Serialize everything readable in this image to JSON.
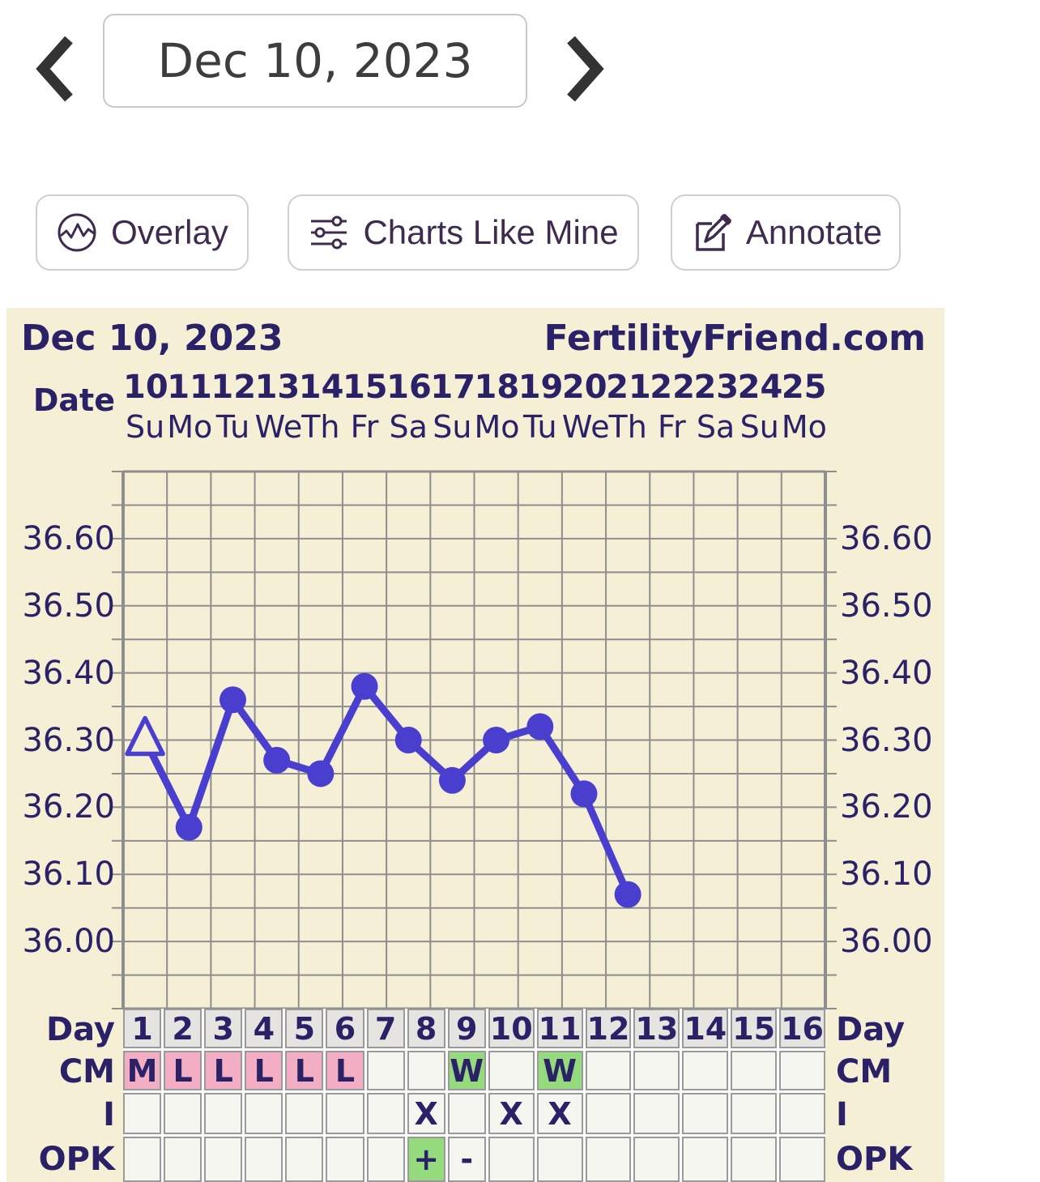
{
  "nav": {
    "prev_icon": "chevron-left",
    "next_icon": "chevron-right",
    "date": "Dec 10, 2023"
  },
  "toolbar": {
    "overlay_label": "Overlay",
    "charts_like_mine_label": "Charts Like Mine",
    "annotate_label": "Annotate"
  },
  "panel": {
    "title": "Dec 10, 2023",
    "site": "FertilityFriend.com",
    "date_label": "Date"
  },
  "chart_data": {
    "type": "line",
    "title": "Dec 10, 2023",
    "dates": [
      "10",
      "11",
      "12",
      "13",
      "14",
      "15",
      "16",
      "17",
      "18",
      "19",
      "20",
      "21",
      "22",
      "23",
      "24",
      "25"
    ],
    "weekdays": [
      "Su",
      "Mo",
      "Tu",
      "We",
      "Th",
      "Fr",
      "Sa",
      "Su",
      "Mo",
      "Tu",
      "We",
      "Th",
      "Fr",
      "Sa",
      "Su",
      "Mo"
    ],
    "days": [
      1,
      2,
      3,
      4,
      5,
      6,
      7,
      8,
      9,
      10,
      11,
      12,
      13,
      14,
      15,
      16
    ],
    "values": [
      36.3,
      36.17,
      36.36,
      36.27,
      36.25,
      36.38,
      36.3,
      36.24,
      36.3,
      36.32,
      36.22,
      36.07,
      null,
      null,
      null,
      null
    ],
    "first_point_marker": "open-triangle",
    "ylim": [
      35.9,
      36.7
    ],
    "yticks": [
      "36.00",
      "36.10",
      "36.20",
      "36.30",
      "36.40",
      "36.50",
      "36.60"
    ],
    "minor_step": 0.05,
    "grid": true,
    "legend": "none",
    "line_color": "#4a3ecf"
  },
  "table": {
    "rows": [
      {
        "label": "Day",
        "cells": [
          {
            "text": "1",
            "bg": "day"
          },
          {
            "text": "2",
            "bg": "day"
          },
          {
            "text": "3",
            "bg": "day"
          },
          {
            "text": "4",
            "bg": "day"
          },
          {
            "text": "5",
            "bg": "day"
          },
          {
            "text": "6",
            "bg": "day"
          },
          {
            "text": "7",
            "bg": "day"
          },
          {
            "text": "8",
            "bg": "day"
          },
          {
            "text": "9",
            "bg": "day"
          },
          {
            "text": "10",
            "bg": "day"
          },
          {
            "text": "11",
            "bg": "day"
          },
          {
            "text": "12",
            "bg": "day"
          },
          {
            "text": "13",
            "bg": "day"
          },
          {
            "text": "14",
            "bg": "day"
          },
          {
            "text": "15",
            "bg": "day"
          },
          {
            "text": "16",
            "bg": "day"
          }
        ]
      },
      {
        "label": "CM",
        "cells": [
          {
            "text": "M",
            "bg": "pink"
          },
          {
            "text": "L",
            "bg": "pink"
          },
          {
            "text": "L",
            "bg": "pink"
          },
          {
            "text": "L",
            "bg": "pink"
          },
          {
            "text": "L",
            "bg": "pink"
          },
          {
            "text": "L",
            "bg": "pink"
          },
          {
            "text": "",
            "bg": "plain"
          },
          {
            "text": "",
            "bg": "plain"
          },
          {
            "text": "W",
            "bg": "green"
          },
          {
            "text": "",
            "bg": "plain"
          },
          {
            "text": "W",
            "bg": "green"
          },
          {
            "text": "",
            "bg": "plain"
          },
          {
            "text": "",
            "bg": "plain"
          },
          {
            "text": "",
            "bg": "plain"
          },
          {
            "text": "",
            "bg": "plain"
          },
          {
            "text": "",
            "bg": "plain"
          }
        ]
      },
      {
        "label": "I",
        "cells": [
          {
            "text": "",
            "bg": "plain"
          },
          {
            "text": "",
            "bg": "plain"
          },
          {
            "text": "",
            "bg": "plain"
          },
          {
            "text": "",
            "bg": "plain"
          },
          {
            "text": "",
            "bg": "plain"
          },
          {
            "text": "",
            "bg": "plain"
          },
          {
            "text": "",
            "bg": "plain"
          },
          {
            "text": "X",
            "bg": "plain"
          },
          {
            "text": "",
            "bg": "plain"
          },
          {
            "text": "X",
            "bg": "plain"
          },
          {
            "text": "X",
            "bg": "plain"
          },
          {
            "text": "",
            "bg": "plain"
          },
          {
            "text": "",
            "bg": "plain"
          },
          {
            "text": "",
            "bg": "plain"
          },
          {
            "text": "",
            "bg": "plain"
          },
          {
            "text": "",
            "bg": "plain"
          }
        ]
      },
      {
        "label": "OPK",
        "cells": [
          {
            "text": "",
            "bg": "plain"
          },
          {
            "text": "",
            "bg": "plain"
          },
          {
            "text": "",
            "bg": "plain"
          },
          {
            "text": "",
            "bg": "plain"
          },
          {
            "text": "",
            "bg": "plain"
          },
          {
            "text": "",
            "bg": "plain"
          },
          {
            "text": "",
            "bg": "plain"
          },
          {
            "text": "+",
            "bg": "green"
          },
          {
            "text": "-",
            "bg": "plain"
          },
          {
            "text": "",
            "bg": "plain"
          },
          {
            "text": "",
            "bg": "plain"
          },
          {
            "text": "",
            "bg": "plain"
          },
          {
            "text": "",
            "bg": "plain"
          },
          {
            "text": "",
            "bg": "plain"
          },
          {
            "text": "",
            "bg": "plain"
          },
          {
            "text": "",
            "bg": "plain"
          }
        ]
      }
    ]
  },
  "colors": {
    "panel_bg": "#f5efd5",
    "navy_text": "#2a2167",
    "line": "#4a3ecf",
    "grid": "#8e8e8e",
    "pink_cell": "#f3aec3",
    "green_cell": "#95da7d",
    "day_cell": "#e5e4e1",
    "plain_cell": "#f6f6f0"
  }
}
